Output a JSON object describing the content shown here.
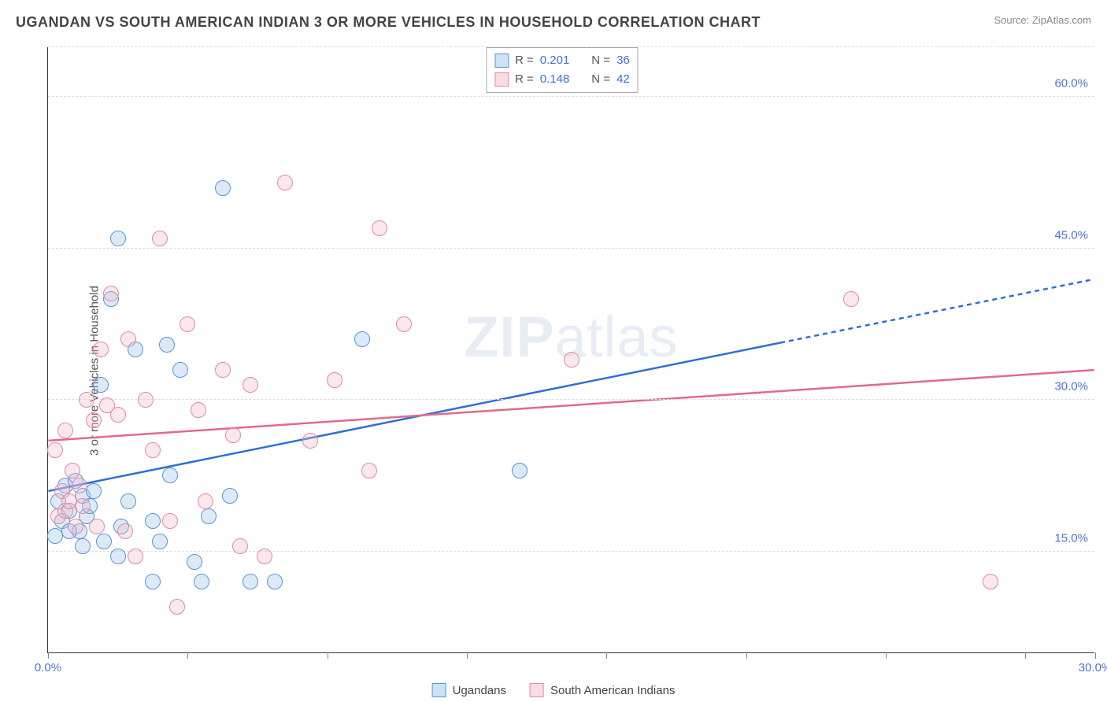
{
  "title": "UGANDAN VS SOUTH AMERICAN INDIAN 3 OR MORE VEHICLES IN HOUSEHOLD CORRELATION CHART",
  "source_prefix": "Source: ",
  "source_name": "ZipAtlas.com",
  "ylabel": "3 or more Vehicles in Household",
  "watermark_bold": "ZIP",
  "watermark_thin": "atlas",
  "chart": {
    "type": "scatter",
    "background_color": "#ffffff",
    "grid_color": "#dddddd",
    "axis_color": "#333333",
    "tick_color": "#888888",
    "tick_label_color": "#4a74d8",
    "tick_fontsize": 15,
    "title_fontsize": 18,
    "label_fontsize": 15,
    "xlim": [
      0,
      30
    ],
    "ylim": [
      5,
      65
    ],
    "yticks": [
      15,
      30,
      45,
      60
    ],
    "ytick_labels": [
      "15.0%",
      "30.0%",
      "45.0%",
      "60.0%"
    ],
    "xticks": [
      0,
      4,
      8,
      12,
      16,
      20,
      24,
      28,
      30
    ],
    "xtick_labels_shown": {
      "0": "0.0%",
      "30": "30.0%"
    },
    "marker_radius": 10,
    "marker_border_width": 1.5,
    "marker_fill_opacity": 0.35,
    "series": [
      {
        "key": "ugandans",
        "label": "Ugandans",
        "fill": "#9cc3ea",
        "stroke": "#5a94d6",
        "line_color": "#2e6fd1",
        "line_width": 2.5,
        "R": "0.201",
        "N": "36",
        "trend": {
          "y_at_x0": 21.0,
          "y_at_x30": 42.0,
          "solid_until_x": 21.0
        },
        "points": [
          [
            0.2,
            16.5
          ],
          [
            0.3,
            20.0
          ],
          [
            0.4,
            18.0
          ],
          [
            0.5,
            21.5
          ],
          [
            0.6,
            19.0
          ],
          [
            0.8,
            22.0
          ],
          [
            0.9,
            17.0
          ],
          [
            1.0,
            20.5
          ],
          [
            1.1,
            18.5
          ],
          [
            1.2,
            19.5
          ],
          [
            1.3,
            21.0
          ],
          [
            1.5,
            31.5
          ],
          [
            1.6,
            16.0
          ],
          [
            1.8,
            40.0
          ],
          [
            2.0,
            46.0
          ],
          [
            2.0,
            14.5
          ],
          [
            2.1,
            17.5
          ],
          [
            2.3,
            20.0
          ],
          [
            2.5,
            35.0
          ],
          [
            3.0,
            18.0
          ],
          [
            3.0,
            12.0
          ],
          [
            3.2,
            16.0
          ],
          [
            3.4,
            35.5
          ],
          [
            3.5,
            22.5
          ],
          [
            3.8,
            33.0
          ],
          [
            4.2,
            14.0
          ],
          [
            4.4,
            12.0
          ],
          [
            4.6,
            18.5
          ],
          [
            5.0,
            51.0
          ],
          [
            5.2,
            20.5
          ],
          [
            5.8,
            12.0
          ],
          [
            6.5,
            12.0
          ],
          [
            9.0,
            36.0
          ],
          [
            13.5,
            23.0
          ],
          [
            0.6,
            17.0
          ],
          [
            1.0,
            15.5
          ]
        ]
      },
      {
        "key": "sai",
        "label": "South American Indians",
        "fill": "#f3b9c8",
        "stroke": "#e08aa4",
        "line_color": "#e06a8c",
        "line_width": 2.5,
        "R": "0.148",
        "N": "42",
        "trend": {
          "y_at_x0": 26.0,
          "y_at_x30": 33.0,
          "solid_until_x": 30.0
        },
        "points": [
          [
            0.2,
            25.0
          ],
          [
            0.3,
            18.5
          ],
          [
            0.4,
            21.0
          ],
          [
            0.5,
            19.0
          ],
          [
            0.6,
            20.0
          ],
          [
            0.7,
            23.0
          ],
          [
            0.8,
            17.5
          ],
          [
            0.9,
            21.5
          ],
          [
            1.0,
            19.5
          ],
          [
            1.1,
            30.0
          ],
          [
            1.3,
            28.0
          ],
          [
            1.4,
            17.5
          ],
          [
            1.5,
            35.0
          ],
          [
            1.7,
            29.5
          ],
          [
            1.8,
            40.5
          ],
          [
            2.0,
            28.5
          ],
          [
            2.2,
            17.0
          ],
          [
            2.3,
            36.0
          ],
          [
            2.5,
            14.5
          ],
          [
            2.8,
            30.0
          ],
          [
            3.0,
            25.0
          ],
          [
            3.2,
            46.0
          ],
          [
            3.5,
            18.0
          ],
          [
            3.7,
            9.5
          ],
          [
            4.0,
            37.5
          ],
          [
            4.3,
            29.0
          ],
          [
            4.5,
            20.0
          ],
          [
            5.0,
            33.0
          ],
          [
            5.3,
            26.5
          ],
          [
            5.5,
            15.5
          ],
          [
            5.8,
            31.5
          ],
          [
            6.2,
            14.5
          ],
          [
            6.8,
            51.5
          ],
          [
            7.5,
            26.0
          ],
          [
            8.2,
            32.0
          ],
          [
            9.2,
            23.0
          ],
          [
            9.5,
            47.0
          ],
          [
            10.2,
            37.5
          ],
          [
            15.0,
            34.0
          ],
          [
            23.0,
            40.0
          ],
          [
            27.0,
            12.0
          ],
          [
            0.5,
            27.0
          ]
        ]
      }
    ],
    "legend_stats_label_R": "R =",
    "legend_stats_label_N": "N ="
  }
}
